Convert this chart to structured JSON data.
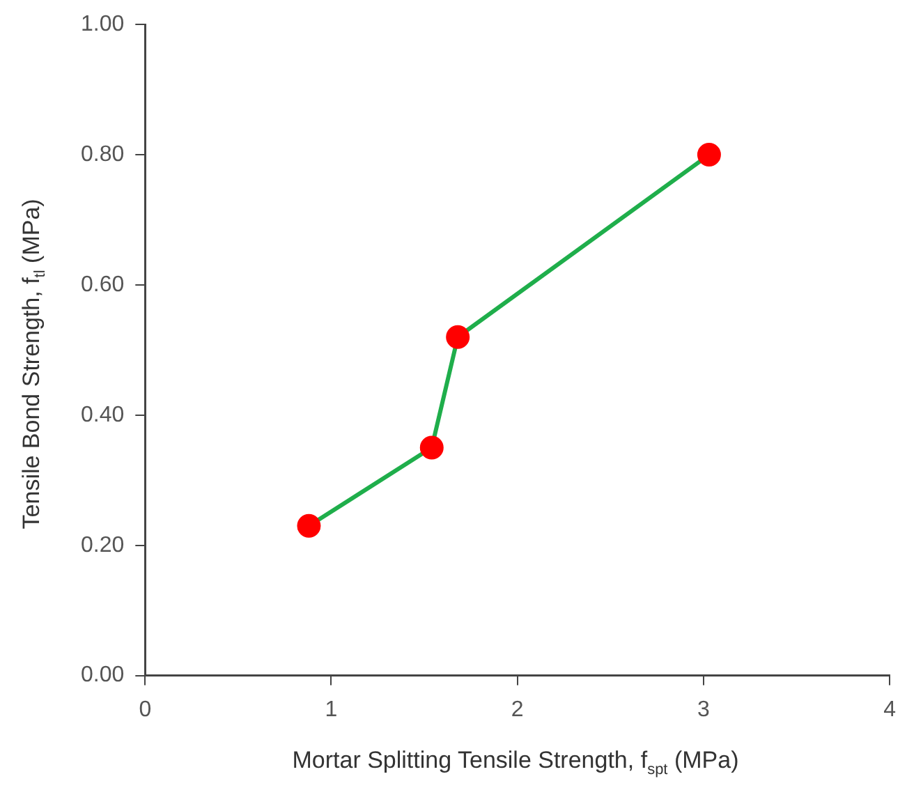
{
  "chart_data": {
    "type": "line",
    "xlabel": "Mortar Splitting Tensile Strength, f$_{spt}$ (MPa)",
    "ylabel": "Tensile Bond Strength, f$_{tl}$ (MPa)",
    "x": [
      0.88,
      1.54,
      1.68,
      3.03
    ],
    "series": [
      {
        "color": "#1fae4b",
        "colors": [
          "#ff0000",
          "#ff0000",
          "#ff0000",
          "#ff0000"
        ],
        "values": [
          0.23,
          0.35,
          0.52,
          0.8
        ]
      }
    ],
    "marker": "circle",
    "xlim": [
      0,
      4
    ],
    "xticks": [
      0,
      1,
      2,
      3,
      4
    ],
    "ylim": [
      0,
      1
    ],
    "yticks": [
      {
        "value": 0,
        "label": "0.00"
      },
      {
        "value": 0.2,
        "label": "0.20"
      },
      {
        "value": 0.4,
        "label": "0.40"
      },
      {
        "value": 0.6,
        "label": "0.60"
      },
      {
        "value": 0.8,
        "label": "0.80"
      },
      {
        "value": 1,
        "label": "1.00"
      }
    ],
    "grid": false,
    "legend": false
  }
}
